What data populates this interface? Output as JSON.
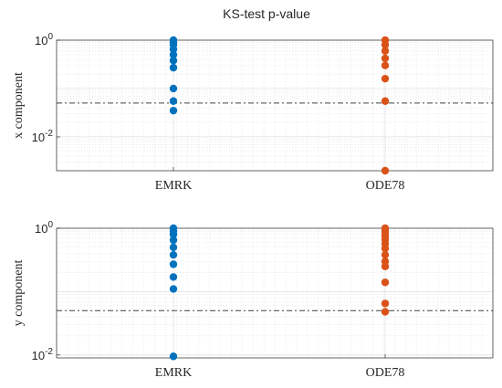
{
  "title": "KS-test p-value",
  "colors": {
    "EMRK": "#0072BD",
    "ODE78": "#D95319",
    "ref_line": "#404040"
  },
  "chart_data": [
    {
      "type": "scatter",
      "ylabel": "x component",
      "categories": [
        "EMRK",
        "ODE78"
      ],
      "yscale": "log",
      "ylim": [
        0.002,
        1
      ],
      "yticks": [
        {
          "exp": "-2",
          "value": 0.01
        },
        {
          "exp": "0",
          "value": 1
        }
      ],
      "reference_line": 0.05,
      "grid": true,
      "series": [
        {
          "category": "EMRK",
          "values": [
            1.0,
            0.9,
            0.8,
            0.65,
            0.5,
            0.38,
            0.27,
            0.1,
            0.055,
            0.035
          ]
        },
        {
          "category": "ODE78",
          "values": [
            1.0,
            0.8,
            0.6,
            0.42,
            0.3,
            0.16,
            0.055,
            0.002
          ]
        }
      ]
    },
    {
      "type": "scatter",
      "ylabel": "y component",
      "categories": [
        "EMRK",
        "ODE78"
      ],
      "yscale": "log",
      "ylim": [
        0.009,
        1
      ],
      "yticks": [
        {
          "exp": "-2",
          "value": 0.01
        },
        {
          "exp": "0",
          "value": 1
        }
      ],
      "reference_line": 0.05,
      "grid": true,
      "series": [
        {
          "category": "EMRK",
          "values": [
            1.0,
            0.9,
            0.8,
            0.65,
            0.5,
            0.38,
            0.27,
            0.17,
            0.11,
            0.0095
          ]
        },
        {
          "category": "ODE78",
          "values": [
            1.0,
            0.92,
            0.85,
            0.76,
            0.66,
            0.57,
            0.48,
            0.38,
            0.3,
            0.25,
            0.14,
            0.065,
            0.048
          ]
        }
      ]
    }
  ]
}
